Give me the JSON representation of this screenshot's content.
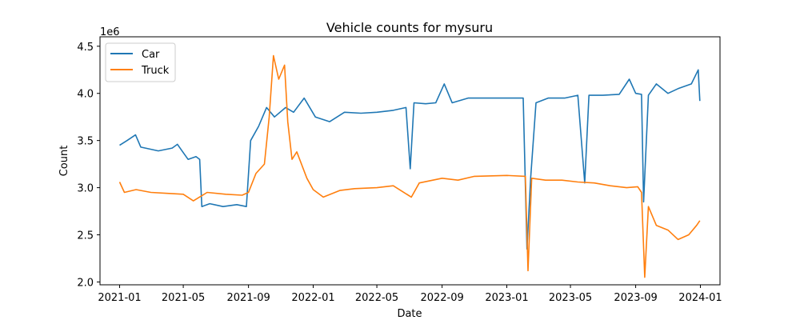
{
  "chart_data": {
    "type": "line",
    "title": "Vehicle counts for mysuru",
    "xlabel": "Date",
    "ylabel": "Count",
    "y_scale_label": "1e6",
    "xlim": [
      "2020-11-25",
      "2024-02-07"
    ],
    "ylim": [
      1970000,
      4600000
    ],
    "grid": false,
    "legend": "upper left",
    "x_ticks": [
      {
        "label": "2021-01",
        "date": "2021-01-01"
      },
      {
        "label": "2021-05",
        "date": "2021-05-01"
      },
      {
        "label": "2021-09",
        "date": "2021-09-01"
      },
      {
        "label": "2022-01",
        "date": "2022-01-01"
      },
      {
        "label": "2022-05",
        "date": "2022-05-01"
      },
      {
        "label": "2022-09",
        "date": "2022-09-01"
      },
      {
        "label": "2023-01",
        "date": "2023-01-01"
      },
      {
        "label": "2023-05",
        "date": "2023-05-01"
      },
      {
        "label": "2023-09",
        "date": "2023-09-01"
      },
      {
        "label": "2024-01",
        "date": "2024-01-01"
      }
    ],
    "y_ticks": [
      {
        "label": "2.0",
        "value": 2000000
      },
      {
        "label": "2.5",
        "value": 2500000
      },
      {
        "label": "3.0",
        "value": 3000000
      },
      {
        "label": "3.5",
        "value": 3500000
      },
      {
        "label": "4.0",
        "value": 4000000
      },
      {
        "label": "4.5",
        "value": 4500000
      }
    ],
    "series": [
      {
        "name": "Car",
        "color": "#1f77b4",
        "points": [
          [
            "2021-01-01",
            3450000
          ],
          [
            "2021-01-15",
            3500000
          ],
          [
            "2021-01-31",
            3560000
          ],
          [
            "2021-02-10",
            3430000
          ],
          [
            "2021-03-15",
            3390000
          ],
          [
            "2021-04-10",
            3420000
          ],
          [
            "2021-04-20",
            3460000
          ],
          [
            "2021-04-30",
            3380000
          ],
          [
            "2021-05-10",
            3300000
          ],
          [
            "2021-05-25",
            3330000
          ],
          [
            "2021-06-01",
            3300000
          ],
          [
            "2021-06-05",
            2800000
          ],
          [
            "2021-06-20",
            2830000
          ],
          [
            "2021-07-15",
            2800000
          ],
          [
            "2021-08-10",
            2820000
          ],
          [
            "2021-08-28",
            2800000
          ],
          [
            "2021-09-05",
            3500000
          ],
          [
            "2021-09-20",
            3650000
          ],
          [
            "2021-10-05",
            3850000
          ],
          [
            "2021-10-20",
            3750000
          ],
          [
            "2021-11-10",
            3850000
          ],
          [
            "2021-11-25",
            3800000
          ],
          [
            "2021-12-15",
            3950000
          ],
          [
            "2022-01-05",
            3750000
          ],
          [
            "2022-02-01",
            3700000
          ],
          [
            "2022-03-01",
            3800000
          ],
          [
            "2022-04-01",
            3790000
          ],
          [
            "2022-05-01",
            3800000
          ],
          [
            "2022-06-01",
            3820000
          ],
          [
            "2022-06-25",
            3850000
          ],
          [
            "2022-07-03",
            3200000
          ],
          [
            "2022-07-10",
            3900000
          ],
          [
            "2022-08-01",
            3890000
          ],
          [
            "2022-08-20",
            3900000
          ],
          [
            "2022-09-05",
            4100000
          ],
          [
            "2022-09-20",
            3900000
          ],
          [
            "2022-10-20",
            3950000
          ],
          [
            "2022-12-01",
            3950000
          ],
          [
            "2023-01-01",
            3950000
          ],
          [
            "2023-02-01",
            3950000
          ],
          [
            "2023-02-08",
            2350000
          ],
          [
            "2023-02-15",
            3100000
          ],
          [
            "2023-02-25",
            3900000
          ],
          [
            "2023-03-20",
            3950000
          ],
          [
            "2023-04-20",
            3950000
          ],
          [
            "2023-05-15",
            3980000
          ],
          [
            "2023-05-28",
            3050000
          ],
          [
            "2023-06-05",
            3980000
          ],
          [
            "2023-07-01",
            3980000
          ],
          [
            "2023-08-01",
            3990000
          ],
          [
            "2023-08-20",
            4150000
          ],
          [
            "2023-09-01",
            4000000
          ],
          [
            "2023-09-12",
            3990000
          ],
          [
            "2023-09-16",
            2850000
          ],
          [
            "2023-09-25",
            3980000
          ],
          [
            "2023-10-10",
            4100000
          ],
          [
            "2023-11-01",
            4000000
          ],
          [
            "2023-11-20",
            4050000
          ],
          [
            "2023-12-15",
            4100000
          ],
          [
            "2023-12-28",
            4250000
          ],
          [
            "2023-12-31",
            3920000
          ]
        ]
      },
      {
        "name": "Truck",
        "color": "#ff7f0e",
        "points": [
          [
            "2021-01-01",
            3060000
          ],
          [
            "2021-01-10",
            2950000
          ],
          [
            "2021-02-01",
            2980000
          ],
          [
            "2021-03-01",
            2950000
          ],
          [
            "2021-04-01",
            2940000
          ],
          [
            "2021-05-01",
            2930000
          ],
          [
            "2021-05-20",
            2860000
          ],
          [
            "2021-06-15",
            2950000
          ],
          [
            "2021-07-20",
            2930000
          ],
          [
            "2021-08-20",
            2920000
          ],
          [
            "2021-09-01",
            2950000
          ],
          [
            "2021-09-15",
            3150000
          ],
          [
            "2021-10-01",
            3250000
          ],
          [
            "2021-10-10",
            3750000
          ],
          [
            "2021-10-18",
            4400000
          ],
          [
            "2021-10-28",
            4150000
          ],
          [
            "2021-11-08",
            4300000
          ],
          [
            "2021-11-14",
            3700000
          ],
          [
            "2021-11-22",
            3300000
          ],
          [
            "2021-12-01",
            3380000
          ],
          [
            "2021-12-20",
            3100000
          ],
          [
            "2022-01-01",
            2980000
          ],
          [
            "2022-01-20",
            2900000
          ],
          [
            "2022-02-20",
            2970000
          ],
          [
            "2022-03-20",
            2990000
          ],
          [
            "2022-05-01",
            3000000
          ],
          [
            "2022-06-01",
            3020000
          ],
          [
            "2022-07-05",
            2900000
          ],
          [
            "2022-07-20",
            3050000
          ],
          [
            "2022-09-01",
            3100000
          ],
          [
            "2022-10-01",
            3080000
          ],
          [
            "2022-11-01",
            3120000
          ],
          [
            "2023-01-01",
            3130000
          ],
          [
            "2023-02-05",
            3120000
          ],
          [
            "2023-02-10",
            2120000
          ],
          [
            "2023-02-17",
            3100000
          ],
          [
            "2023-03-15",
            3080000
          ],
          [
            "2023-04-15",
            3080000
          ],
          [
            "2023-05-15",
            3060000
          ],
          [
            "2023-06-15",
            3050000
          ],
          [
            "2023-07-15",
            3020000
          ],
          [
            "2023-08-15",
            3000000
          ],
          [
            "2023-09-05",
            3010000
          ],
          [
            "2023-09-12",
            2950000
          ],
          [
            "2023-09-18",
            2050000
          ],
          [
            "2023-09-25",
            2800000
          ],
          [
            "2023-10-10",
            2600000
          ],
          [
            "2023-11-01",
            2550000
          ],
          [
            "2023-11-20",
            2450000
          ],
          [
            "2023-12-10",
            2500000
          ],
          [
            "2023-12-25",
            2600000
          ],
          [
            "2023-12-31",
            2650000
          ]
        ]
      }
    ]
  }
}
